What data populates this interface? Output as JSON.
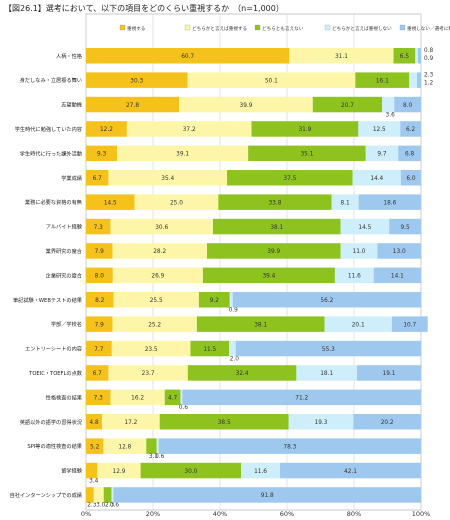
{
  "chart_data": {
    "type": "bar",
    "orientation": "horizontal",
    "stacked": true,
    "title": "【図26.1】選考において、以下の項目をどのくらい重視するか　（n=1,000）",
    "xlim": [
      0,
      100
    ],
    "x_ticks": [
      "0%",
      "20%",
      "40%",
      "60%",
      "80%",
      "100%"
    ],
    "grid": true,
    "legend_position": "top",
    "categories": [
      "人柄・性格",
      "身だしなみ・立居振る舞い",
      "志望動機",
      "学生時代に勉強していた内容",
      "学生時代に行った課外活動",
      "学業成績",
      "業務に必要な資格の有無",
      "アルバイト経験",
      "業界研究の度合",
      "企業研究の度合",
      "筆記試験・WEBテストの結果",
      "学部／学校名",
      "エントリーシートの内容",
      "TOEIC・TOEFLの点数",
      "性格検査の結果",
      "英語以外の語学の習得状況",
      "SPI等の適性検査の結果",
      "留学経験",
      "自社インターンシップでの成績"
    ],
    "series": [
      {
        "name": "重視する",
        "color": "#f5c11b",
        "values": [
          60.7,
          30.3,
          27.8,
          12.2,
          9.3,
          6.7,
          14.5,
          7.3,
          7.9,
          8.0,
          8.2,
          7.9,
          7.7,
          6.7,
          7.3,
          4.8,
          5.2,
          3.4,
          2.3
        ]
      },
      {
        "name": "どちらかと言えば重視する",
        "color": "#fdf6a8",
        "values": [
          31.1,
          50.1,
          39.9,
          37.2,
          39.1,
          35.4,
          25.0,
          30.6,
          28.2,
          26.9,
          25.5,
          25.2,
          23.5,
          23.7,
          16.2,
          17.2,
          12.8,
          12.9,
          3.0
        ]
      },
      {
        "name": "どちらとも言えない",
        "color": "#8dc21f",
        "values": [
          6.5,
          16.1,
          20.7,
          31.9,
          35.1,
          37.5,
          33.8,
          38.1,
          39.9,
          39.4,
          9.2,
          38.1,
          11.5,
          32.4,
          4.7,
          38.5,
          3.1,
          30.0,
          2.3
        ]
      },
      {
        "name": "どちらかと言えば重視しない",
        "color": "#cdeefa",
        "values": [
          0.8,
          2.3,
          3.6,
          12.5,
          9.7,
          14.4,
          8.1,
          14.5,
          11.0,
          11.6,
          0.9,
          20.1,
          2.0,
          18.1,
          0.6,
          19.3,
          0.6,
          11.6,
          0.6
        ]
      },
      {
        "name": "重視しない／選考に利用しない",
        "color": "#9fc8ee",
        "values": [
          0.9,
          1.2,
          8.0,
          6.2,
          6.8,
          6.0,
          18.6,
          9.5,
          13.0,
          14.1,
          56.2,
          10.7,
          55.3,
          19.1,
          71.2,
          20.2,
          78.3,
          42.1,
          91.8
        ]
      }
    ]
  }
}
